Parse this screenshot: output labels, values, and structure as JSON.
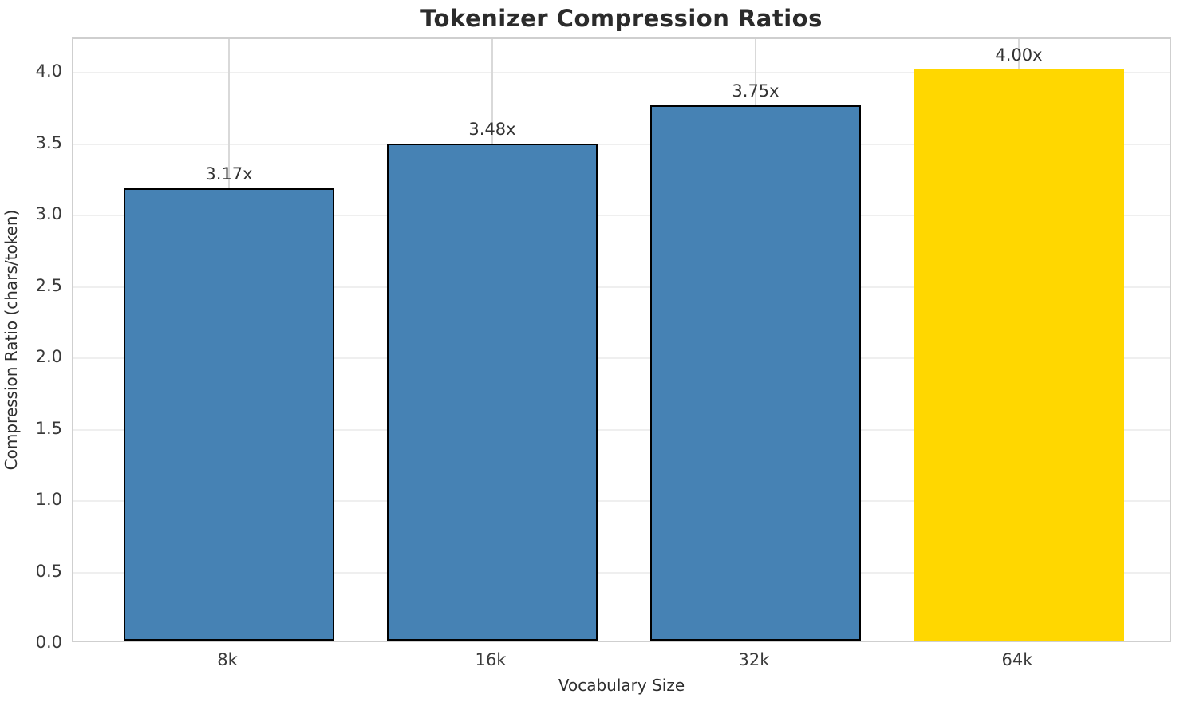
{
  "chart_data": {
    "type": "bar",
    "title": "Tokenizer Compression Ratios",
    "xlabel": "Vocabulary Size",
    "ylabel": "Compression Ratio (chars/token)",
    "categories": [
      "8k",
      "16k",
      "32k",
      "64k"
    ],
    "values": [
      3.17,
      3.48,
      3.75,
      4.0
    ],
    "bar_labels": [
      "3.17x",
      "3.48x",
      "3.75x",
      "4.00x"
    ],
    "bar_colors": [
      "#4682B4",
      "#4682B4",
      "#4682B4",
      "#FFD700"
    ],
    "bar_edge_colors": [
      "#000000",
      "#000000",
      "#000000",
      "none"
    ],
    "highlighted_category": "64k",
    "ylim": [
      0,
      4.23
    ],
    "yticks": [
      "0.0",
      "0.5",
      "1.0",
      "1.5",
      "2.0",
      "2.5",
      "3.0",
      "3.5",
      "4.0"
    ],
    "grid": true,
    "legend_position": "none",
    "styles": {
      "title_color": "#2b2b2b",
      "tick_color": "#3a3a3a",
      "hgrid_color": "#efefef",
      "vgrid_color": "#d9d9d9",
      "spine_color": "#cfcfcf",
      "background": "#ffffff"
    }
  }
}
